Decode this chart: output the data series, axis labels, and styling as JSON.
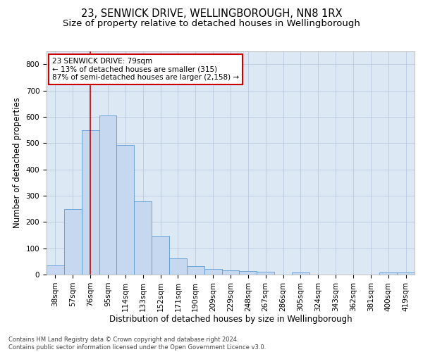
{
  "title": "23, SENWICK DRIVE, WELLINGBOROUGH, NN8 1RX",
  "subtitle": "Size of property relative to detached houses in Wellingborough",
  "xlabel": "Distribution of detached houses by size in Wellingborough",
  "ylabel": "Number of detached properties",
  "categories": [
    "38sqm",
    "57sqm",
    "76sqm",
    "95sqm",
    "114sqm",
    "133sqm",
    "152sqm",
    "171sqm",
    "190sqm",
    "209sqm",
    "229sqm",
    "248sqm",
    "267sqm",
    "286sqm",
    "305sqm",
    "324sqm",
    "343sqm",
    "362sqm",
    "381sqm",
    "400sqm",
    "419sqm"
  ],
  "values": [
    35,
    248,
    548,
    606,
    493,
    278,
    148,
    62,
    33,
    22,
    17,
    14,
    11,
    0,
    7,
    0,
    0,
    0,
    0,
    8,
    7
  ],
  "bar_color": "#c5d8f0",
  "bar_edge_color": "#5b9bd5",
  "grid_color": "#b8c8dc",
  "background_color": "#dde8f5",
  "vline_x": 2,
  "vline_color": "#cc0000",
  "annotation_text": "23 SENWICK DRIVE: 79sqm\n← 13% of detached houses are smaller (315)\n87% of semi-detached houses are larger (2,158) →",
  "annotation_box_facecolor": "#ffffff",
  "annotation_box_edge": "#cc0000",
  "ylim": [
    0,
    850
  ],
  "yticks": [
    0,
    100,
    200,
    300,
    400,
    500,
    600,
    700,
    800
  ],
  "footer_text": "Contains HM Land Registry data © Crown copyright and database right 2024.\nContains public sector information licensed under the Open Government Licence v3.0.",
  "title_fontsize": 10.5,
  "subtitle_fontsize": 9.5,
  "axis_label_fontsize": 8.5,
  "tick_fontsize": 7.5,
  "annotation_fontsize": 7.5,
  "footer_fontsize": 6.0
}
